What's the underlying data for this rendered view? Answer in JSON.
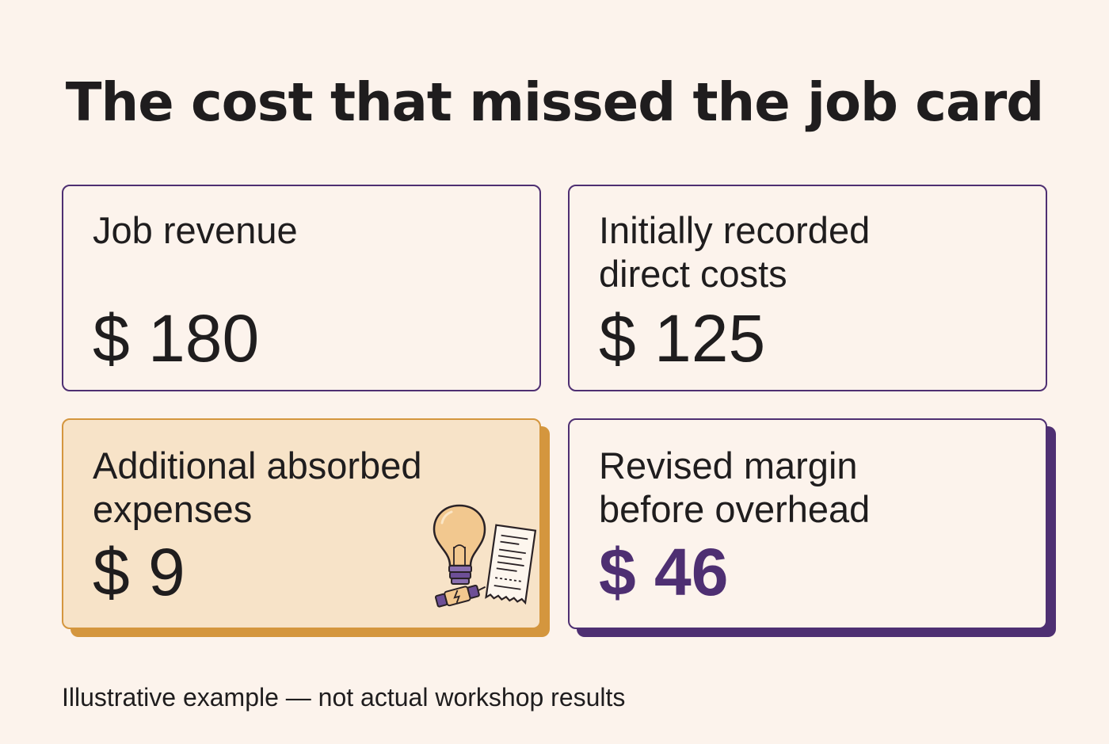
{
  "title": "The cost that missed the job card",
  "cards": {
    "revenue": {
      "label": "Job revenue",
      "value": "$ 180"
    },
    "recorded": {
      "label_line1": "Initially recorded",
      "label_line2": "direct costs",
      "value": "$ 125"
    },
    "absorbed": {
      "label_line1": "Additional absorbed",
      "label_line2": "expenses",
      "value": "$ 9",
      "icons": [
        "lightbulb-icon",
        "fuse-icon",
        "receipt-icon"
      ]
    },
    "margin": {
      "label_line1": "Revised margin",
      "label_line2": "before overhead",
      "value": "$ 46"
    }
  },
  "footnote": "Illustrative example — not actual workshop results",
  "colors": {
    "background": "#fcf3ec",
    "purple": "#4e2f72",
    "amber": "#d4963e",
    "amber_fill": "#f7e3c8",
    "text": "#1f1d1e"
  }
}
